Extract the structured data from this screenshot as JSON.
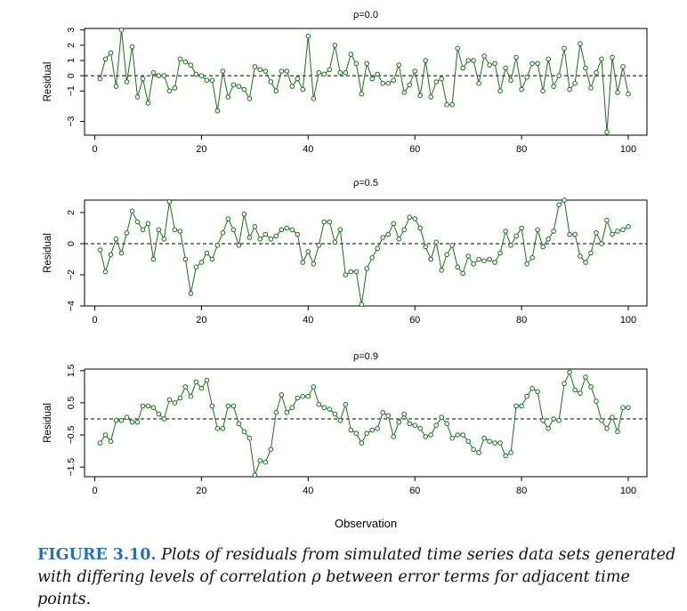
{
  "figure": {
    "label": "FIGURE 3.10.",
    "caption": "Plots of residuals from simulated time series data sets generated with differing levels of correlation ρ between error terms for adjacent time points.",
    "xlabel": "Observation"
  },
  "colors": {
    "series": "#1e6b1e",
    "axis": "#000000",
    "caption_label": "#2a6fb0"
  },
  "chart_data": [
    {
      "type": "line",
      "title": "ρ=0.0",
      "xlabel": "Observation",
      "ylabel": "Residual",
      "xlim": [
        1,
        100
      ],
      "ylim": [
        -3.9,
        3.1
      ],
      "xticks": [
        0,
        20,
        40,
        60,
        80,
        100
      ],
      "yticks": [
        -3,
        -1,
        0,
        1,
        2,
        3
      ],
      "ytick_labels": [
        "−3",
        "−1",
        "0",
        "1",
        "2",
        "3"
      ],
      "reference_line": 0,
      "x": [
        1,
        2,
        3,
        4,
        5,
        6,
        7,
        8,
        9,
        10,
        11,
        12,
        13,
        14,
        15,
        16,
        17,
        18,
        19,
        20,
        21,
        22,
        23,
        24,
        25,
        26,
        27,
        28,
        29,
        30,
        31,
        32,
        33,
        34,
        35,
        36,
        37,
        38,
        39,
        40,
        41,
        42,
        43,
        44,
        45,
        46,
        47,
        48,
        49,
        50,
        51,
        52,
        53,
        54,
        55,
        56,
        57,
        58,
        59,
        60,
        61,
        62,
        63,
        64,
        65,
        66,
        67,
        68,
        69,
        70,
        71,
        72,
        73,
        74,
        75,
        76,
        77,
        78,
        79,
        80,
        81,
        82,
        83,
        84,
        85,
        86,
        87,
        88,
        89,
        90,
        91,
        92,
        93,
        94,
        95,
        96,
        97,
        98,
        99,
        100
      ],
      "y": [
        -0.2,
        1.1,
        1.5,
        -0.7,
        3.0,
        -0.4,
        1.9,
        -1.4,
        -0.2,
        -1.8,
        0.2,
        0.0,
        0.0,
        -1.0,
        -0.8,
        1.1,
        0.9,
        0.7,
        0.1,
        0.0,
        -0.3,
        -0.3,
        -2.3,
        0.3,
        -1.4,
        -0.6,
        -0.7,
        -0.9,
        -1.5,
        0.6,
        0.4,
        0.3,
        -0.4,
        -1.0,
        0.3,
        0.3,
        -0.7,
        -0.2,
        -0.9,
        2.6,
        -1.5,
        0.2,
        0.1,
        0.4,
        2.0,
        0.2,
        0.2,
        1.4,
        0.8,
        -1.2,
        0.8,
        -0.2,
        0.1,
        -0.5,
        -0.5,
        -0.3,
        0.7,
        -1.1,
        -0.6,
        0.3,
        -1.3,
        1.0,
        -1.4,
        -0.4,
        -0.2,
        -1.9,
        -1.9,
        1.8,
        0.5,
        1.0,
        1.0,
        -0.5,
        1.3,
        0.7,
        0.8,
        -1.0,
        0.5,
        -0.3,
        1.2,
        -0.9,
        -0.1,
        0.8,
        0.8,
        -1.0,
        1.1,
        -0.7,
        0.0,
        1.8,
        -0.9,
        -0.5,
        2.1,
        0.5,
        -0.8,
        0.2,
        1.1,
        -3.7,
        1.2,
        -1.1,
        0.6,
        -1.2
      ]
    },
    {
      "type": "line",
      "title": "ρ=0.5",
      "xlabel": "Observation",
      "ylabel": "Residual",
      "xlim": [
        1,
        100
      ],
      "ylim": [
        -4.0,
        2.8
      ],
      "xticks": [
        0,
        20,
        40,
        60,
        80,
        100
      ],
      "yticks": [
        -4,
        -2,
        0,
        2
      ],
      "ytick_labels": [
        "−4",
        "−2",
        "0",
        "2"
      ],
      "reference_line": 0,
      "x": [
        1,
        2,
        3,
        4,
        5,
        6,
        7,
        8,
        9,
        10,
        11,
        12,
        13,
        14,
        15,
        16,
        17,
        18,
        19,
        20,
        21,
        22,
        23,
        24,
        25,
        26,
        27,
        28,
        29,
        30,
        31,
        32,
        33,
        34,
        35,
        36,
        37,
        38,
        39,
        40,
        41,
        42,
        43,
        44,
        45,
        46,
        47,
        48,
        49,
        50,
        51,
        52,
        53,
        54,
        55,
        56,
        57,
        58,
        59,
        60,
        61,
        62,
        63,
        64,
        65,
        66,
        67,
        68,
        69,
        70,
        71,
        72,
        73,
        74,
        75,
        76,
        77,
        78,
        79,
        80,
        81,
        82,
        83,
        84,
        85,
        86,
        87,
        88,
        89,
        90,
        91,
        92,
        93,
        94,
        95,
        96,
        97,
        98,
        99,
        100
      ],
      "y": [
        -0.4,
        -1.8,
        -0.7,
        0.3,
        -0.6,
        0.7,
        2.1,
        1.4,
        0.9,
        1.3,
        -1.0,
        0.9,
        0.3,
        2.7,
        0.9,
        0.8,
        -1.0,
        -3.2,
        -1.5,
        -1.2,
        -0.6,
        -1.0,
        -0.1,
        0.7,
        1.6,
        0.9,
        -0.1,
        1.9,
        0.4,
        1.1,
        0.3,
        0.6,
        0.3,
        0.5,
        0.9,
        1.0,
        0.9,
        0.6,
        -1.2,
        -0.5,
        -1.3,
        -0.1,
        1.4,
        1.4,
        0.1,
        0.9,
        -2.0,
        -1.8,
        -1.8,
        -3.9,
        -1.6,
        -0.9,
        -0.3,
        0.4,
        0.6,
        1.3,
        0.3,
        0.9,
        1.7,
        1.6,
        1.0,
        -0.2,
        -1.0,
        0.1,
        -1.7,
        -0.7,
        -0.1,
        -1.5,
        -1.9,
        -0.8,
        -1.3,
        -1.0,
        -1.1,
        -1.0,
        -1.2,
        -0.6,
        0.8,
        -0.1,
        0.5,
        1.0,
        -1.3,
        -0.9,
        0.9,
        -0.2,
        0.3,
        0.8,
        2.5,
        2.8,
        0.6,
        0.6,
        -0.8,
        -1.2,
        -0.6,
        0.7,
        0.0,
        1.5,
        0.6,
        0.8,
        0.9,
        1.1
      ]
    },
    {
      "type": "line",
      "title": "ρ=0.9",
      "xlabel": "Observation",
      "ylabel": "Residual",
      "xlim": [
        1,
        100
      ],
      "ylim": [
        -1.8,
        1.55
      ],
      "xticks": [
        0,
        20,
        40,
        60,
        80,
        100
      ],
      "yticks": [
        -1.5,
        -0.5,
        0.5,
        1.5
      ],
      "ytick_labels": [
        "−1.5",
        "−0.5",
        "0.5",
        "1.5"
      ],
      "reference_line": 0,
      "x": [
        1,
        2,
        3,
        4,
        5,
        6,
        7,
        8,
        9,
        10,
        11,
        12,
        13,
        14,
        15,
        16,
        17,
        18,
        19,
        20,
        21,
        22,
        23,
        24,
        25,
        26,
        27,
        28,
        29,
        30,
        31,
        32,
        33,
        34,
        35,
        36,
        37,
        38,
        39,
        40,
        41,
        42,
        43,
        44,
        45,
        46,
        47,
        48,
        49,
        50,
        51,
        52,
        53,
        54,
        55,
        56,
        57,
        58,
        59,
        60,
        61,
        62,
        63,
        64,
        65,
        66,
        67,
        68,
        69,
        70,
        71,
        72,
        73,
        74,
        75,
        76,
        77,
        78,
        79,
        80,
        81,
        82,
        83,
        84,
        85,
        86,
        87,
        88,
        89,
        90,
        91,
        92,
        93,
        94,
        95,
        96,
        97,
        98,
        99,
        100
      ],
      "y": [
        -0.75,
        -0.5,
        -0.7,
        -0.05,
        -0.05,
        0.05,
        -0.1,
        -0.1,
        0.4,
        0.4,
        0.35,
        0.15,
        0.0,
        0.6,
        0.5,
        0.65,
        1.0,
        0.7,
        1.15,
        0.95,
        1.2,
        0.4,
        -0.3,
        -0.3,
        0.4,
        0.4,
        -0.15,
        -0.4,
        -0.6,
        -1.75,
        -1.3,
        -1.35,
        -0.95,
        0.2,
        0.75,
        0.2,
        0.35,
        0.65,
        0.7,
        0.7,
        1.0,
        0.45,
        0.35,
        0.3,
        0.15,
        -0.05,
        0.45,
        -0.35,
        -0.45,
        -0.75,
        -0.45,
        -0.35,
        -0.3,
        0.2,
        0.1,
        -0.55,
        -0.1,
        0.15,
        -0.15,
        -0.2,
        -0.3,
        -0.55,
        -0.5,
        -0.2,
        0.05,
        -0.15,
        -0.6,
        -0.5,
        -0.5,
        -0.7,
        -0.95,
        -1.05,
        -0.6,
        -0.7,
        -0.75,
        -0.75,
        -1.15,
        -1.05,
        0.4,
        0.4,
        0.7,
        0.95,
        0.85,
        -0.05,
        -0.3,
        0.0,
        -0.05,
        1.1,
        1.45,
        0.9,
        0.8,
        1.3,
        1.0,
        0.55,
        -0.05,
        -0.3,
        0.05,
        -0.4,
        0.35,
        0.35
      ]
    }
  ]
}
